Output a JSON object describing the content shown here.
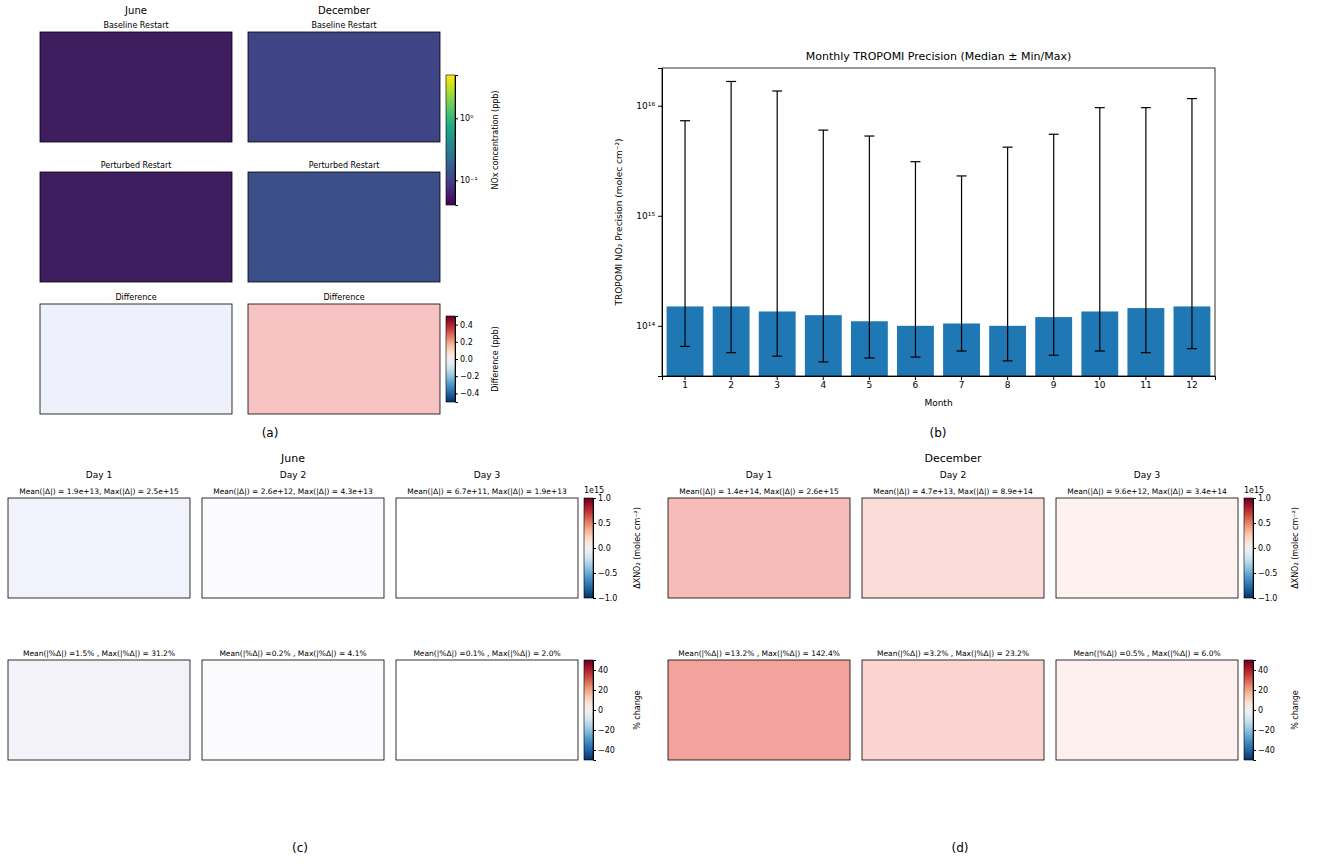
{
  "chart_data": [
    {
      "type": "map_grid",
      "panel_label": "(a)",
      "columns": [
        "June",
        "December"
      ],
      "maps": [
        [
          {
            "title": "Baseline Restart",
            "color": "#3f1d5f"
          },
          {
            "title": "Baseline Restart",
            "color": "#3e4486"
          }
        ],
        [
          {
            "title": "Perturbed Restart",
            "color": "#3f1e60"
          },
          {
            "title": "Perturbed Restart",
            "color": "#3b5089"
          }
        ],
        [
          {
            "title": "Difference",
            "color": "#eef1fb"
          },
          {
            "title": "Difference",
            "color": "#f7c2c2"
          }
        ]
      ],
      "colorbars": [
        {
          "label": "NOx concentration (ppb)",
          "log": true,
          "range": [
            0.04,
            5
          ],
          "ticks": [
            {
              "value": 0.1,
              "label": "10⁻¹"
            },
            {
              "value": 1,
              "label": "10⁰"
            }
          ]
        },
        {
          "label": "Difference (ppb)",
          "range": [
            -0.5,
            0.5
          ],
          "ticks": [
            {
              "value": -0.4,
              "label": "−0.4"
            },
            {
              "value": -0.2,
              "label": "−0.2"
            },
            {
              "value": 0,
              "label": "0.0"
            },
            0.2,
            0.4
          ]
        }
      ]
    },
    {
      "type": "bar",
      "panel_label": "(b)",
      "title": "Monthly TROPOMI Precision (Median ± Min/Max)",
      "x_label": "Month",
      "y_label": "TROPOMI NO₂ Precision (molec cm⁻²)",
      "categories": [
        "1",
        "2",
        "3",
        "4",
        "5",
        "6",
        "7",
        "8",
        "9",
        "10",
        "11",
        "12"
      ],
      "log": "y",
      "grid": false,
      "ylim": [
        35000000000000.0,
        2.2e+16
      ],
      "yticks": [
        {
          "value": 100000000000000.0,
          "label": "10¹⁴"
        },
        {
          "value": 1000000000000000.0,
          "label": "10¹⁵"
        },
        {
          "value": 1e+16,
          "label": "10¹⁶"
        }
      ],
      "series": [
        {
          "color": "#1f77b4",
          "values": [
            150000000000000.0,
            150000000000000.0,
            135000000000000.0,
            125000000000000.0,
            110000000000000.0,
            100000000000000.0,
            105000000000000.0,
            100000000000000.0,
            120000000000000.0,
            135000000000000.0,
            145000000000000.0,
            150000000000000.0
          ],
          "min": [
            65000000000000.0,
            57000000000000.0,
            53000000000000.0,
            47000000000000.0,
            51000000000000.0,
            52000000000000.0,
            59000000000000.0,
            48000000000000.0,
            54000000000000.0,
            59000000000000.0,
            57000000000000.0,
            62000000000000.0
          ],
          "max": [
            7300000000000000.0,
            1.66e+16,
            1.36e+16,
            6000000000000000.0,
            5300000000000000.0,
            3100000000000000.0,
            2300000000000000.0,
            4200000000000000.0,
            5500000000000000.0,
            9600000000000000.0,
            9600000000000000.0,
            1.16e+16
          ]
        }
      ]
    },
    {
      "type": "map_grid",
      "panel_label": "(c)",
      "title": "June",
      "columns": [
        "Day 1",
        "Day 2",
        "Day 3"
      ],
      "maps": [
        [
          {
            "title": "Mean(|Δ|) = 1.9e+13, Max(|Δ|) = 2.5e+15",
            "color": "#f1f2fb"
          },
          {
            "title": "Mean(|Δ|) = 2.6e+12, Max(|Δ|) = 4.3e+13",
            "color": "#fbfbfe"
          },
          {
            "title": "Mean(|Δ|) = 6.7e+11, Max(|Δ|) = 1.9e+13",
            "color": "#ffffff"
          }
        ],
        [
          {
            "title": "Mean(|%Δ|) =1.5% , Max(|%Δ|) = 31.2%",
            "color": "#f3f2f8"
          },
          {
            "title": "Mean(|%Δ|) =0.2% , Max(|%Δ|) = 4.1%",
            "color": "#fbfbfd"
          },
          {
            "title": "Mean(|%Δ|) =0.1% , Max(|%Δ|) = 2.0%",
            "color": "#ffffff"
          }
        ]
      ],
      "colorbars": [
        {
          "label": "ΔXNO₂ (molec cm⁻²)",
          "offset_label": "1e15",
          "range": [
            -1,
            1
          ],
          "ticks": [
            {
              "value": -1,
              "label": "−1.0"
            },
            {
              "value": -0.5,
              "label": "−0.5"
            },
            {
              "value": 0,
              "label": "0.0"
            },
            0.5,
            {
              "value": 1,
              "label": "1.0"
            }
          ]
        },
        {
          "label": "% change",
          "range": [
            -50,
            50
          ],
          "ticks": [
            {
              "value": -40,
              "label": "−40"
            },
            {
              "value": -20,
              "label": "−20"
            },
            0,
            20,
            40
          ]
        }
      ]
    },
    {
      "type": "map_grid",
      "panel_label": "(d)",
      "title": "December",
      "columns": [
        "Day 1",
        "Day 2",
        "Day 3"
      ],
      "maps": [
        [
          {
            "title": "Mean(|Δ|) = 1.4e+14, Max(|Δ|) = 2.6e+15",
            "color": "#f8bcb8"
          },
          {
            "title": "Mean(|Δ|) = 4.7e+13, Max(|Δ|) = 8.9e+14",
            "color": "#fbdcd8"
          },
          {
            "title": "Mean(|Δ|) = 9.6e+12, Max(|Δ|) = 3.4e+14",
            "color": "#fdf2f0"
          }
        ],
        [
          {
            "title": "Mean(|%Δ|) =13.2% , Max(|%Δ|) = 142.4%",
            "color": "#f4a29c"
          },
          {
            "title": "Mean(|%Δ|) =3.2% , Max(|%Δ|) = 23.2%",
            "color": "#fad4d0"
          },
          {
            "title": "Mean(|%Δ|) =0.5% , Max(|%Δ|) = 6.0%",
            "color": "#fdf0ee"
          }
        ]
      ],
      "colorbars": [
        {
          "label": "ΔXNO₂ (molec cm⁻²)",
          "offset_label": "1e15",
          "range": [
            -1,
            1
          ],
          "ticks": [
            {
              "value": -1,
              "label": "−1.0"
            },
            {
              "value": -0.5,
              "label": "−0.5"
            },
            {
              "value": 0,
              "label": "0.0"
            },
            0.5,
            {
              "value": 1,
              "label": "1.0"
            }
          ]
        },
        {
          "label": "% change",
          "range": [
            -50,
            50
          ],
          "ticks": [
            {
              "value": -40,
              "label": "−40"
            },
            {
              "value": -20,
              "label": "−20"
            },
            0,
            20,
            40
          ]
        }
      ]
    }
  ]
}
